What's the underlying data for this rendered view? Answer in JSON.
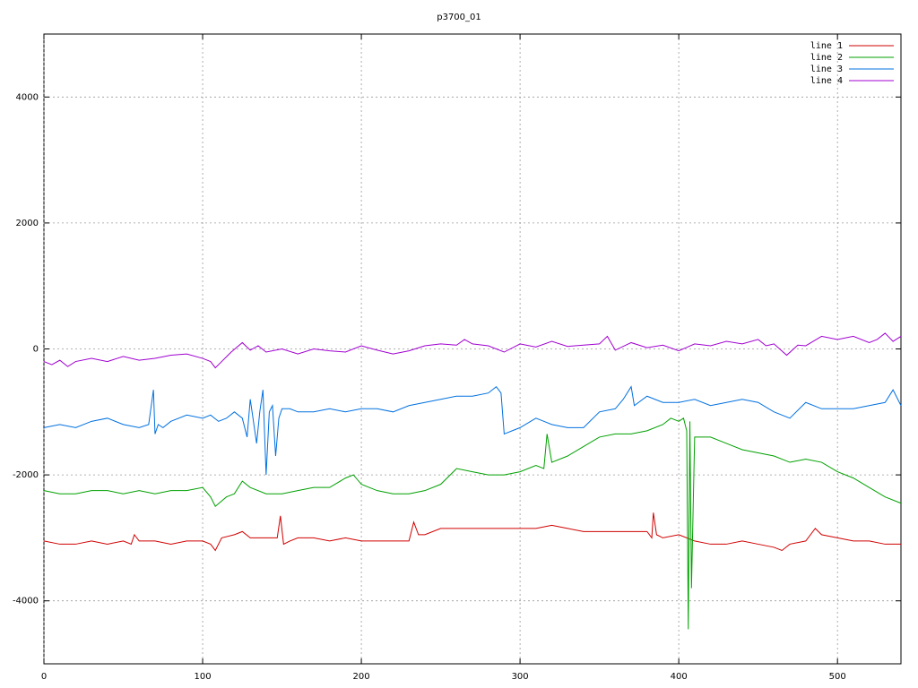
{
  "chart_data": {
    "type": "line",
    "title": "p3700_01",
    "xlim": [
      0,
      540
    ],
    "xticks": [
      0,
      100,
      200,
      300,
      400,
      500
    ],
    "ylim": [
      -5000,
      5000
    ],
    "yticks": [
      -4000,
      -2000,
      0,
      2000,
      4000
    ],
    "grid": true,
    "legend": "top-right",
    "series": [
      {
        "name": "line 1",
        "color": "#d00000",
        "x": [
          0,
          10,
          20,
          30,
          40,
          50,
          55,
          57,
          60,
          70,
          80,
          90,
          100,
          105,
          108,
          112,
          120,
          125,
          130,
          140,
          147,
          149,
          151,
          155,
          160,
          170,
          180,
          190,
          200,
          210,
          220,
          230,
          233,
          236,
          240,
          250,
          260,
          270,
          280,
          290,
          300,
          310,
          320,
          330,
          340,
          350,
          360,
          370,
          380,
          383,
          384,
          386,
          390,
          400,
          410,
          420,
          430,
          440,
          450,
          460,
          465,
          470,
          480,
          486,
          490,
          500,
          510,
          520,
          530,
          535,
          540
        ],
        "values": [
          -3050,
          -3100,
          -3100,
          -3050,
          -3100,
          -3050,
          -3100,
          -2950,
          -3050,
          -3050,
          -3100,
          -3050,
          -3050,
          -3100,
          -3200,
          -3000,
          -2950,
          -2900,
          -3000,
          -3000,
          -3000,
          -2650,
          -3100,
          -3050,
          -3000,
          -3000,
          -3050,
          -3000,
          -3050,
          -3050,
          -3050,
          -3050,
          -2750,
          -2950,
          -2950,
          -2850,
          -2850,
          -2850,
          -2850,
          -2850,
          -2850,
          -2850,
          -2800,
          -2850,
          -2900,
          -2900,
          -2900,
          -2900,
          -2900,
          -3000,
          -2600,
          -2950,
          -3000,
          -2950,
          -3050,
          -3100,
          -3100,
          -3050,
          -3100,
          -3150,
          -3200,
          -3100,
          -3050,
          -2850,
          -2950,
          -3000,
          -3050,
          -3050,
          -3100,
          -3100,
          -3100
        ]
      },
      {
        "name": "line 2",
        "color": "#00a000",
        "x": [
          0,
          10,
          20,
          30,
          40,
          50,
          60,
          70,
          80,
          90,
          100,
          105,
          108,
          115,
          120,
          125,
          130,
          140,
          150,
          160,
          170,
          180,
          190,
          195,
          200,
          210,
          220,
          230,
          240,
          250,
          260,
          270,
          280,
          290,
          300,
          310,
          315,
          317,
          320,
          330,
          340,
          350,
          360,
          370,
          380,
          390,
          395,
          400,
          403,
          405,
          406,
          407,
          408,
          410,
          420,
          430,
          440,
          450,
          460,
          470,
          480,
          490,
          500,
          510,
          520,
          530,
          540
        ],
        "values": [
          -2250,
          -2300,
          -2300,
          -2250,
          -2250,
          -2300,
          -2250,
          -2300,
          -2250,
          -2250,
          -2200,
          -2350,
          -2500,
          -2350,
          -2300,
          -2100,
          -2200,
          -2300,
          -2300,
          -2250,
          -2200,
          -2200,
          -2050,
          -2000,
          -2150,
          -2250,
          -2300,
          -2300,
          -2250,
          -2150,
          -1900,
          -1950,
          -2000,
          -2000,
          -1950,
          -1850,
          -1900,
          -1350,
          -1800,
          -1700,
          -1550,
          -1400,
          -1350,
          -1350,
          -1300,
          -1200,
          -1100,
          -1150,
          -1100,
          -1300,
          -4450,
          -1150,
          -3800,
          -1400,
          -1400,
          -1500,
          -1600,
          -1650,
          -1700,
          -1800,
          -1750,
          -1800,
          -1950,
          -2050,
          -2200,
          -2350,
          -2450
        ]
      },
      {
        "name": "line 3",
        "color": "#0070e0",
        "x": [
          0,
          10,
          20,
          30,
          40,
          50,
          60,
          66,
          69,
          70,
          72,
          75,
          80,
          90,
          100,
          105,
          110,
          115,
          120,
          125,
          128,
          130,
          132,
          134,
          136,
          138,
          140,
          142,
          144,
          146,
          148,
          150,
          155,
          160,
          170,
          180,
          190,
          200,
          210,
          220,
          230,
          240,
          250,
          260,
          270,
          280,
          285,
          288,
          290,
          295,
          300,
          310,
          315,
          320,
          330,
          340,
          350,
          360,
          365,
          370,
          372,
          380,
          390,
          400,
          410,
          420,
          430,
          440,
          450,
          460,
          465,
          470,
          480,
          490,
          500,
          510,
          520,
          530,
          535,
          540
        ],
        "values": [
          -1250,
          -1200,
          -1250,
          -1150,
          -1100,
          -1200,
          -1250,
          -1200,
          -650,
          -1350,
          -1200,
          -1250,
          -1150,
          -1050,
          -1100,
          -1050,
          -1150,
          -1100,
          -1000,
          -1100,
          -1400,
          -800,
          -1150,
          -1500,
          -1000,
          -650,
          -2000,
          -1000,
          -900,
          -1700,
          -1100,
          -950,
          -950,
          -1000,
          -1000,
          -950,
          -1000,
          -950,
          -950,
          -1000,
          -900,
          -850,
          -800,
          -750,
          -750,
          -700,
          -600,
          -700,
          -1350,
          -1300,
          -1250,
          -1100,
          -1150,
          -1200,
          -1250,
          -1250,
          -1000,
          -950,
          -800,
          -600,
          -900,
          -750,
          -850,
          -850,
          -800,
          -900,
          -850,
          -800,
          -850,
          -1000,
          -1050,
          -1100,
          -850,
          -950,
          -950,
          -950,
          -900,
          -850,
          -650,
          -900
        ]
      },
      {
        "name": "line 4",
        "color": "#a000d0",
        "x": [
          0,
          5,
          10,
          15,
          20,
          30,
          40,
          50,
          60,
          70,
          80,
          90,
          100,
          105,
          108,
          112,
          118,
          125,
          130,
          135,
          140,
          150,
          160,
          170,
          180,
          190,
          200,
          210,
          220,
          230,
          240,
          250,
          260,
          265,
          270,
          280,
          290,
          300,
          310,
          320,
          330,
          340,
          350,
          355,
          360,
          370,
          380,
          390,
          400,
          410,
          420,
          430,
          440,
          450,
          455,
          460,
          468,
          475,
          480,
          490,
          500,
          510,
          520,
          525,
          530,
          535,
          540
        ],
        "values": [
          -200,
          -250,
          -180,
          -280,
          -200,
          -150,
          -200,
          -120,
          -180,
          -150,
          -100,
          -80,
          -150,
          -200,
          -300,
          -200,
          -50,
          100,
          -20,
          50,
          -50,
          0,
          -80,
          0,
          -30,
          -50,
          50,
          -20,
          -80,
          -30,
          50,
          80,
          60,
          150,
          80,
          50,
          -50,
          80,
          30,
          120,
          40,
          60,
          80,
          200,
          -20,
          100,
          20,
          60,
          -30,
          80,
          50,
          120,
          80,
          150,
          50,
          80,
          -100,
          60,
          50,
          200,
          150,
          200,
          100,
          150,
          250,
          120,
          200
        ]
      }
    ]
  }
}
